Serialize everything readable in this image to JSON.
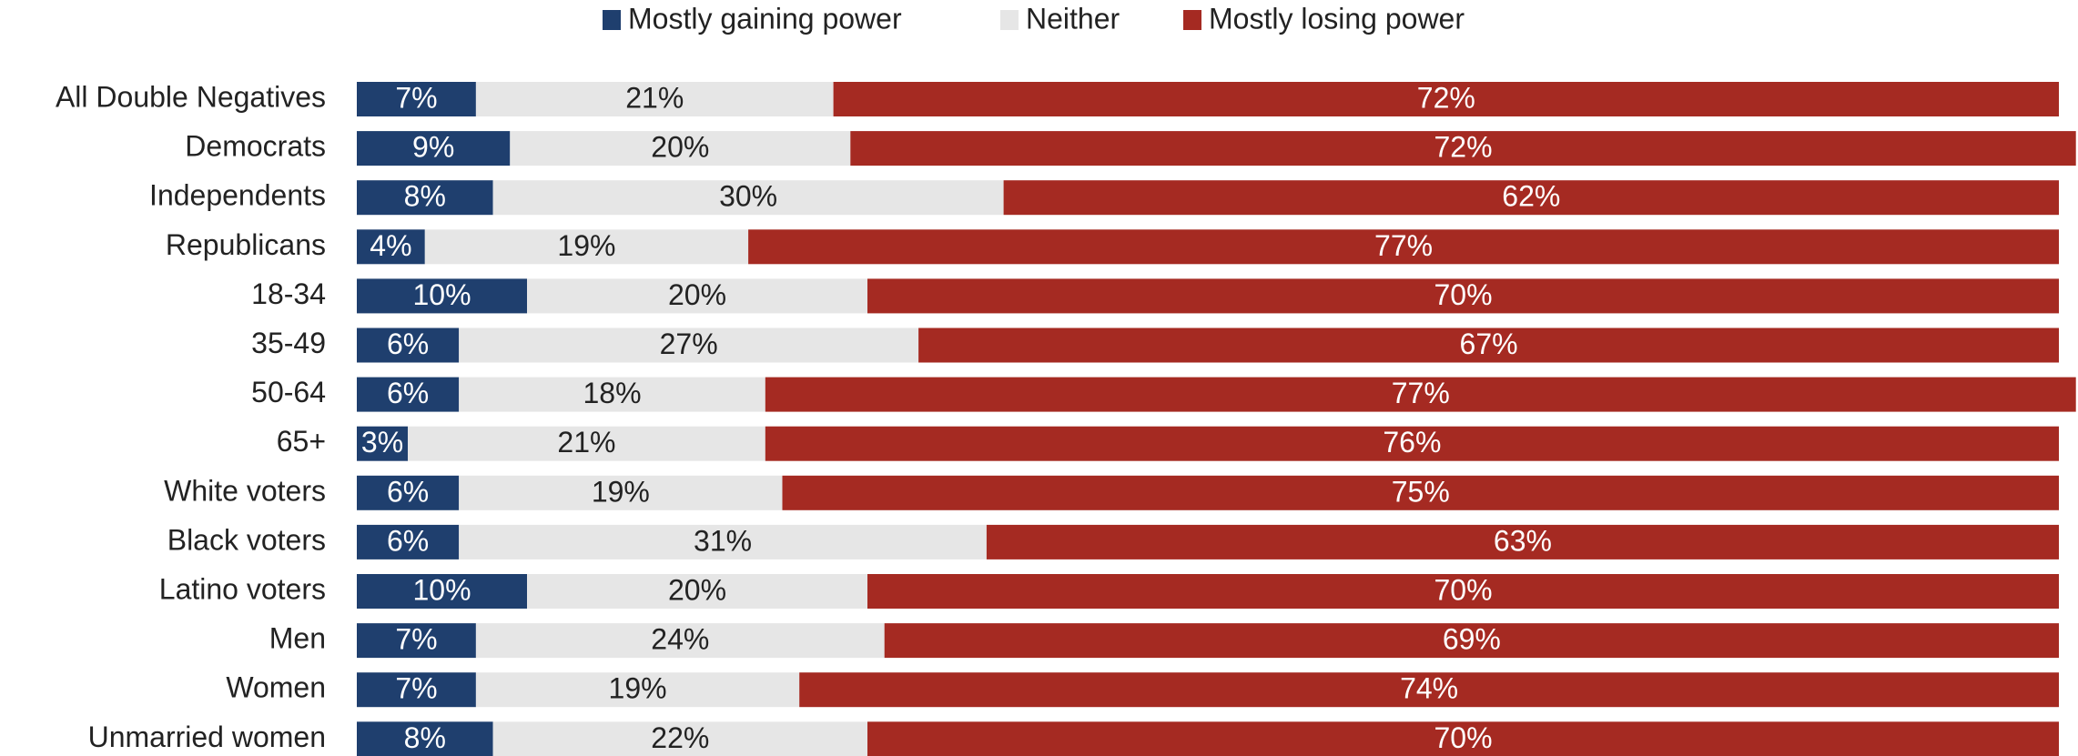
{
  "chart_data": {
    "type": "stacked-bar-horizontal",
    "categories": [
      "All Double Negatives",
      "Democrats",
      "Independents",
      "Republicans",
      "18-34",
      "35-49",
      "50-64",
      "65+",
      "White voters",
      "Black voters",
      "Latino voters",
      "Men",
      "Women",
      "Unmarried women"
    ],
    "series": [
      {
        "name": "Mostly gaining power",
        "color": "#1f3f6e",
        "label_color": "#ffffff",
        "values": [
          7,
          9,
          8,
          4,
          10,
          6,
          6,
          3,
          6,
          6,
          10,
          7,
          7,
          8
        ],
        "value_labels": [
          "7%",
          "9%",
          "8%",
          "4%",
          "10%",
          "6%",
          "6%",
          "3%",
          "6%",
          "6%",
          "10%",
          "7%",
          "7%",
          "8%"
        ]
      },
      {
        "name": "Neither",
        "color": "#e6e6e6",
        "label_color": "#222222",
        "values": [
          21,
          20,
          30,
          19,
          20,
          27,
          18,
          21,
          19,
          31,
          20,
          24,
          19,
          22
        ],
        "value_labels": [
          "21%",
          "20%",
          "30%",
          "19%",
          "20%",
          "27%",
          "18%",
          "21%",
          "19%",
          "31%",
          "20%",
          "24%",
          "19%",
          "22%"
        ]
      },
      {
        "name": "Mostly losing power",
        "color": "#a52a22",
        "label_color": "#ffffff",
        "values": [
          72,
          72,
          62,
          77,
          70,
          67,
          77,
          76,
          75,
          63,
          70,
          69,
          74,
          70
        ],
        "value_labels": [
          "72%",
          "72%",
          "62%",
          "77%",
          "70%",
          "67%",
          "77%",
          "76%",
          "75%",
          "63%",
          "70%",
          "69%",
          "74%",
          "70%"
        ]
      }
    ],
    "xlim": [
      0,
      100
    ],
    "legend": "top"
  }
}
